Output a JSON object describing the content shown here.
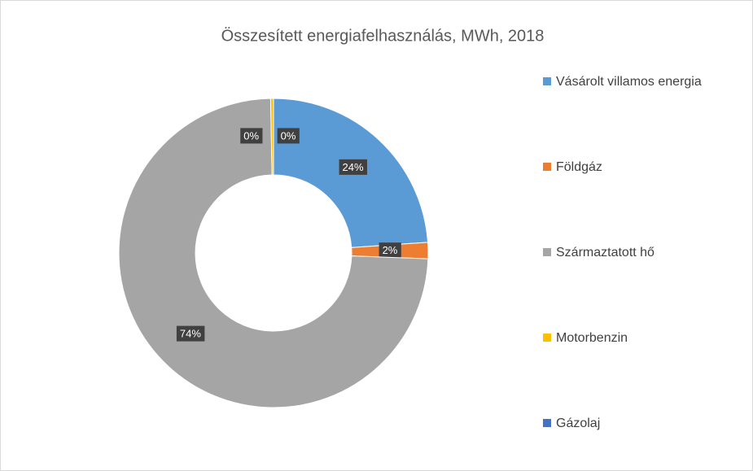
{
  "chart_data": {
    "type": "donut",
    "title": "Összesített energiafelhasználás, MWh, 2018",
    "categories": [
      "Vásárolt villamos energia",
      "Földgáz",
      "Származtatott hő",
      "Motorbenzin",
      "Gázolaj"
    ],
    "values": [
      23.9,
      1.7,
      74.1,
      0.3,
      0
    ],
    "value_labels": [
      "24%",
      "2%",
      "74%",
      "0%",
      "0%"
    ],
    "colors": [
      "#5b9bd5",
      "#ed7d31",
      "#a5a5a5",
      "#ffc000",
      "#4472c4"
    ],
    "legend": "right"
  }
}
